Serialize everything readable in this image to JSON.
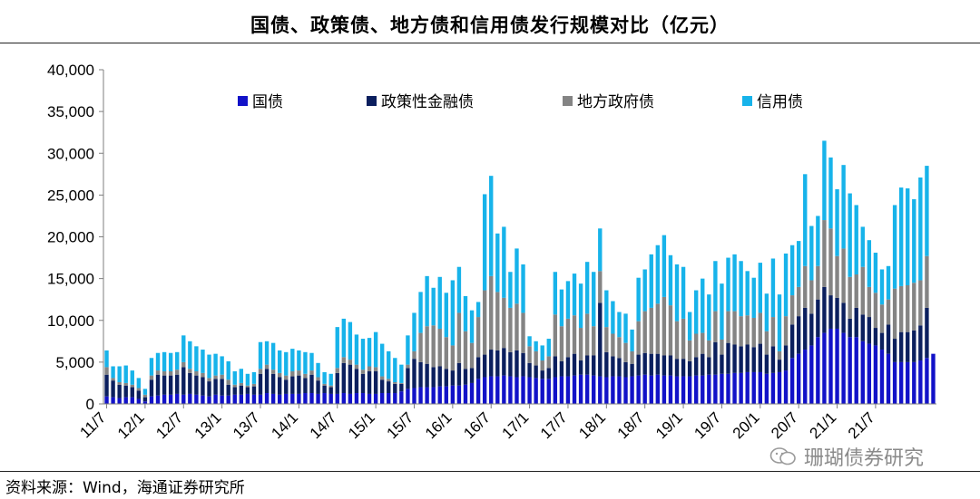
{
  "title": "国债、政策债、地方债和信用债发行规模对比（亿元）",
  "source": "资料来源：Wind，海通证券研究所",
  "watermark": "珊瑚债券研究",
  "chart_data": {
    "type": "bar",
    "stacked": true,
    "title": "国债、政策债、地方债和信用债发行规模对比（亿元）",
    "xlabel": "",
    "ylabel": "",
    "ylim": [
      0,
      40000
    ],
    "yticks": [
      0,
      5000,
      10000,
      15000,
      20000,
      25000,
      30000,
      35000,
      40000
    ],
    "ytick_labels": [
      "0",
      "5,000",
      "10,000",
      "15,000",
      "20,000",
      "25,000",
      "30,000",
      "35,000",
      "40,000"
    ],
    "grid": false,
    "legend_position": "top",
    "xtick_labels": [
      "11/7",
      "12/1",
      "12/7",
      "13/1",
      "13/7",
      "14/1",
      "14/7",
      "15/1",
      "15/7",
      "16/1",
      "16/7",
      "17/1",
      "17/7",
      "18/1",
      "18/7",
      "19/1",
      "19/7",
      "20/1",
      "20/7",
      "21/1",
      "21/7"
    ],
    "xtick_every": 6,
    "series": [
      {
        "name": "国债",
        "color": "#1212c8",
        "values": [
          900,
          800,
          700,
          800,
          800,
          600,
          300,
          900,
          1000,
          1100,
          1100,
          1200,
          1100,
          1200,
          1100,
          1000,
          900,
          1100,
          1000,
          1000,
          1100,
          1100,
          1200,
          1100,
          1100,
          1300,
          1200,
          1100,
          1200,
          1200,
          1200,
          1300,
          1300,
          1200,
          1300,
          1200,
          1200,
          1300,
          1200,
          1300,
          1300,
          1200,
          1200,
          1300,
          1300,
          1300,
          1500,
          1800,
          1900,
          2000,
          2000,
          2000,
          2100,
          2100,
          2200,
          2200,
          2300,
          2500,
          3000,
          3200,
          3300,
          3300,
          3400,
          3300,
          3200,
          3300,
          3200,
          3100,
          3000,
          3000,
          3200,
          3300,
          3300,
          3400,
          3500,
          3500,
          3400,
          3300,
          3200,
          3300,
          3300,
          3200,
          3300,
          3400,
          3500,
          3400,
          3500,
          3400,
          3400,
          3300,
          3300,
          3300,
          3400,
          3400,
          3500,
          3500,
          3600,
          3600,
          3700,
          3700,
          3800,
          3800,
          3800,
          3600,
          3700,
          3800,
          4000,
          5500,
          6000,
          6500,
          7000,
          8000,
          8500,
          9000,
          9000,
          8500,
          8000,
          8000,
          7500,
          7200,
          7000,
          6500,
          6000,
          5000,
          5000,
          5000,
          5000,
          5200,
          5500,
          6000
        ]
      },
      {
        "name": "政策性金融债",
        "color": "#0b1f5e",
        "values": [
          2600,
          2000,
          1600,
          1400,
          1200,
          1000,
          500,
          2000,
          2500,
          2300,
          2300,
          2300,
          3300,
          2500,
          2300,
          2200,
          1800,
          1900,
          2000,
          1300,
          900,
          1100,
          800,
          1000,
          2500,
          2900,
          2400,
          2100,
          1700,
          2100,
          2200,
          1800,
          2200,
          1600,
          900,
          800,
          2500,
          3600,
          3500,
          2900,
          2300,
          2700,
          2700,
          1600,
          1400,
          1100,
          900,
          2500,
          3500,
          3000,
          2800,
          2400,
          2400,
          2100,
          1800,
          2700,
          1900,
          1800,
          2600,
          2700,
          3200,
          3100,
          3300,
          2900,
          3200,
          2800,
          1700,
          1500,
          1000,
          1300,
          2500,
          1800,
          2300,
          2600,
          1700,
          2300,
          2400,
          8800,
          3000,
          2400,
          2200,
          1800,
          1500,
          2500,
          2600,
          2600,
          2500,
          2400,
          2400,
          2100,
          2100,
          1800,
          2200,
          2600,
          2100,
          3900,
          2300,
          3700,
          3400,
          3200,
          3300,
          3000,
          3400,
          2300,
          3200,
          1500,
          3000,
          4000,
          4500,
          5000,
          3800,
          4500,
          5500,
          4000,
          3700,
          3600,
          2200,
          3500,
          3200,
          3200,
          2100,
          2000,
          3500,
          2800,
          3600,
          3600,
          3800,
          4200,
          6000
        ]
      },
      {
        "name": "地方政府债",
        "color": "#848484",
        "values": [
          900,
          300,
          300,
          300,
          300,
          300,
          300,
          500,
          500,
          500,
          500,
          600,
          600,
          500,
          500,
          500,
          400,
          400,
          500,
          600,
          300,
          300,
          200,
          300,
          600,
          500,
          500,
          500,
          500,
          600,
          600,
          500,
          500,
          400,
          200,
          200,
          600,
          700,
          600,
          500,
          500,
          600,
          500,
          400,
          300,
          200,
          100,
          400,
          900,
          3500,
          4500,
          5000,
          4500,
          3800,
          3000,
          6000,
          4500,
          3000,
          4800,
          7700,
          8800,
          7000,
          6000,
          5300,
          5600,
          4800,
          2000,
          1700,
          1200,
          1400,
          5000,
          4200,
          4600,
          4600,
          3900,
          5000,
          3500,
          3800,
          3000,
          2700,
          2500,
          2300,
          1500,
          4000,
          5000,
          5500,
          6000,
          7000,
          6000,
          4500,
          4800,
          2500,
          2800,
          2500,
          2000,
          3700,
          1800,
          3800,
          4000,
          3600,
          3500,
          3500,
          3700,
          2800,
          3500,
          1000,
          3500,
          3500,
          3500,
          5000,
          4000,
          4000,
          8000,
          8000,
          5000,
          6500,
          5000,
          4000,
          5700,
          3600,
          4200,
          3400,
          3000,
          6000,
          5500,
          5600,
          5700,
          5400,
          6200
        ]
      },
      {
        "name": "信用债",
        "color": "#17b3ea",
        "values": [
          2000,
          1400,
          1900,
          2100,
          1700,
          1200,
          700,
          2100,
          2100,
          2300,
          2200,
          2100,
          3200,
          3300,
          3000,
          2800,
          2800,
          2600,
          2200,
          2200,
          1600,
          1700,
          1400,
          1400,
          3200,
          2800,
          3200,
          2700,
          2800,
          2700,
          2400,
          2600,
          2100,
          1700,
          1400,
          1400,
          4900,
          4600,
          4500,
          3600,
          3700,
          3400,
          4200,
          3900,
          3300,
          2900,
          2200,
          3500,
          4600,
          4900,
          6000,
          4500,
          6200,
          5300,
          7800,
          5500,
          4200,
          3900,
          1800,
          11500,
          12000,
          7000,
          8500,
          4300,
          6600,
          5800,
          1200,
          1200,
          1800,
          2100,
          5100,
          4400,
          4500,
          5000,
          5300,
          6200,
          6500,
          5100,
          4400,
          3900,
          3000,
          3500,
          2600,
          5200,
          5000,
          6400,
          7000,
          7400,
          6000,
          6800,
          6200,
          3400,
          5200,
          6500,
          5500,
          6000,
          6700,
          6400,
          6800,
          6600,
          5300,
          4800,
          6000,
          4500,
          7000,
          6800,
          7500,
          6000,
          5500,
          11000,
          6500,
          6000,
          9500,
          8500,
          8000,
          10000,
          10000,
          8300,
          4800,
          5600,
          4800,
          4200,
          4000,
          10000,
          11800,
          11600,
          10000,
          12300,
          10800
        ]
      }
    ]
  }
}
